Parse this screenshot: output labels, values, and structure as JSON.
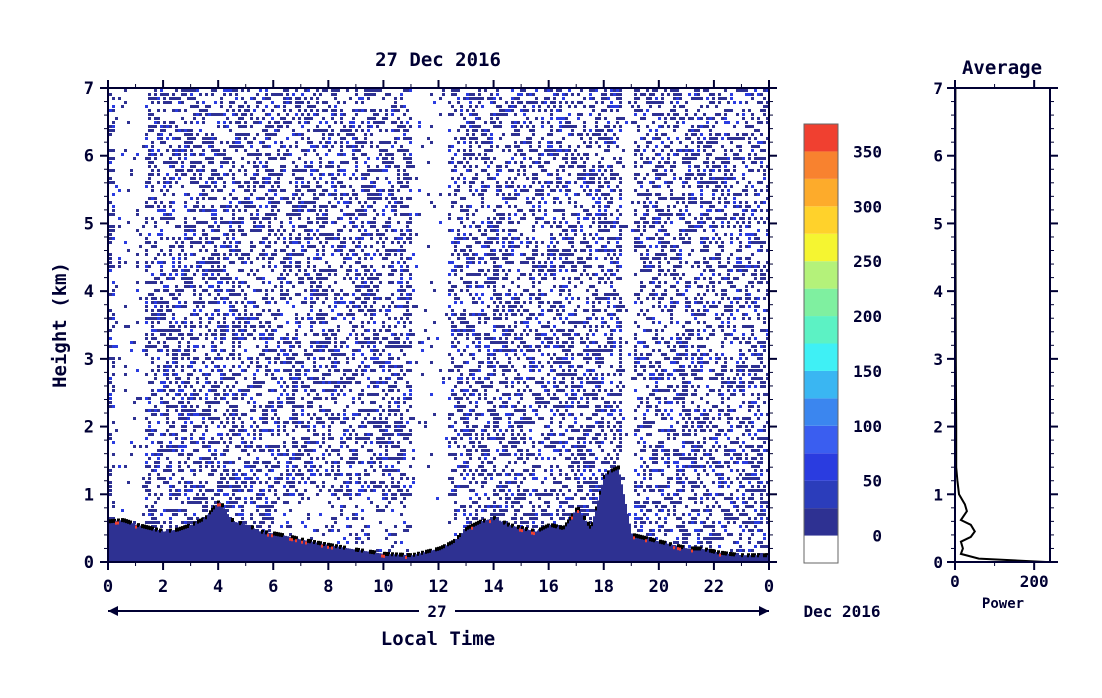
{
  "chart_data": [
    {
      "type": "heatmap",
      "title": "27 Dec 2016",
      "xlabel": "Local Time",
      "ylabel": "Height (km)",
      "xlim": [
        0,
        24
      ],
      "ylim": [
        0,
        7
      ],
      "x_ticks": [
        "0",
        "2",
        "4",
        "6",
        "8",
        "10",
        "12",
        "14",
        "16",
        "18",
        "20",
        "22",
        "0"
      ],
      "x_tick_values": [
        0,
        2,
        4,
        6,
        8,
        10,
        12,
        14,
        16,
        18,
        20,
        22,
        24
      ],
      "y_ticks": [
        "0",
        "1",
        "2",
        "3",
        "4",
        "5",
        "6",
        "7"
      ],
      "date_bar": {
        "day_label": "27",
        "month_label": "Dec 2016"
      },
      "colorbar": {
        "tick_labels": [
          "0",
          "50",
          "100",
          "150",
          "200",
          "250",
          "300",
          "350"
        ],
        "tick_values": [
          0,
          50,
          100,
          150,
          200,
          250,
          300,
          350
        ],
        "range": [
          -25,
          375
        ],
        "bands": [
          {
            "from": -25,
            "to": 0,
            "color": "#ffffff"
          },
          {
            "from": 0,
            "to": 25,
            "color": "#2e3192"
          },
          {
            "from": 25,
            "to": 50,
            "color": "#2b3dbb"
          },
          {
            "from": 50,
            "to": 75,
            "color": "#2a3ce0"
          },
          {
            "from": 75,
            "to": 100,
            "color": "#3a5ef0"
          },
          {
            "from": 100,
            "to": 125,
            "color": "#3b86ef"
          },
          {
            "from": 125,
            "to": 150,
            "color": "#3ab6f2"
          },
          {
            "from": 150,
            "to": 175,
            "color": "#3ff0f5"
          },
          {
            "from": 175,
            "to": 200,
            "color": "#5cf2c4"
          },
          {
            "from": 200,
            "to": 225,
            "color": "#7ff0a0"
          },
          {
            "from": 225,
            "to": 250,
            "color": "#b4f27a"
          },
          {
            "from": 250,
            "to": 275,
            "color": "#f5f531"
          },
          {
            "from": 275,
            "to": 300,
            "color": "#ffd22b"
          },
          {
            "from": 300,
            "to": 325,
            "color": "#fdab2b"
          },
          {
            "from": 325,
            "to": 350,
            "color": "#f8822f"
          },
          {
            "from": 350,
            "to": 375,
            "color": "#f04030"
          }
        ]
      },
      "boundary_layer_height_km": {
        "x": [
          0,
          0.5,
          1,
          1.5,
          2,
          2.5,
          3,
          3.5,
          4,
          4.5,
          5,
          5.5,
          6,
          6.5,
          7,
          8,
          9,
          10,
          11,
          12,
          12.5,
          13,
          13.5,
          14,
          14.5,
          15,
          15.5,
          16,
          16.5,
          17,
          17.5,
          18,
          18.5,
          19,
          19.5,
          20,
          20.5,
          21,
          21.5,
          22,
          22.5,
          23,
          23.5,
          24
        ],
        "y": [
          0.6,
          0.62,
          0.55,
          0.5,
          0.45,
          0.48,
          0.55,
          0.65,
          0.9,
          0.6,
          0.55,
          0.45,
          0.42,
          0.38,
          0.33,
          0.25,
          0.18,
          0.12,
          0.1,
          0.2,
          0.3,
          0.5,
          0.6,
          0.65,
          0.55,
          0.5,
          0.45,
          0.55,
          0.5,
          0.8,
          0.5,
          1.3,
          1.4,
          0.4,
          0.35,
          0.3,
          0.25,
          0.2,
          0.2,
          0.15,
          0.12,
          0.1,
          0.1,
          0.1
        ],
        "colors": {
          "low_layer": "#2e3192",
          "dots": "#000000",
          "core": "#f04030"
        }
      }
    },
    {
      "type": "line",
      "title": "Average",
      "xlabel": "Power",
      "ylabel": "",
      "xlim": [
        0,
        240
      ],
      "ylim": [
        0,
        7
      ],
      "x_ticks": [
        "0",
        "200"
      ],
      "x_tick_values": [
        0,
        200
      ],
      "y_ticks": [
        "0",
        "1",
        "2",
        "3",
        "4",
        "5",
        "6",
        "7"
      ],
      "series": [
        {
          "x": [
            230,
            60,
            15,
            20,
            15,
            40,
            50,
            40,
            15,
            30,
            25,
            10,
            6,
            3,
            3,
            2,
            1,
            1
          ],
          "y": [
            0,
            0.05,
            0.12,
            0.2,
            0.3,
            0.37,
            0.45,
            0.55,
            0.62,
            0.75,
            0.85,
            1.0,
            1.2,
            1.4,
            2.0,
            3.0,
            5.0,
            7.0
          ]
        }
      ]
    }
  ]
}
